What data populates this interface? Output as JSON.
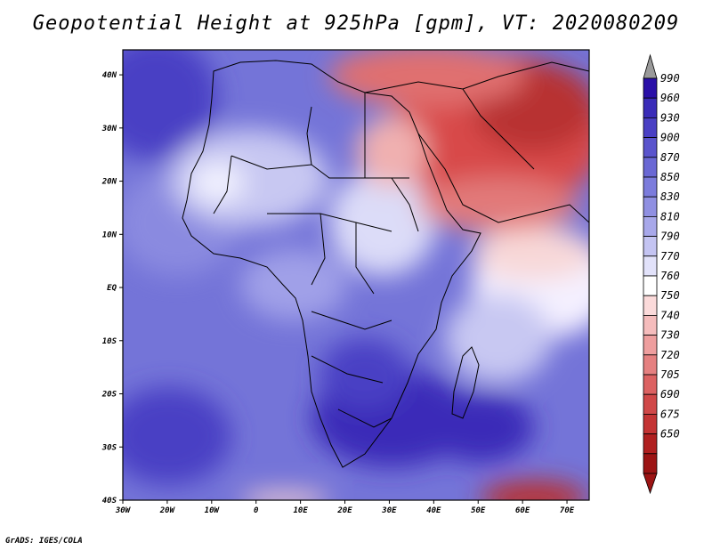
{
  "title": "Geopotential Height at 925hPa [gpm], VT: 2020080209",
  "credit": "GrADS: IGES/COLA",
  "map": {
    "variable": "Geopotential Height",
    "level": "925hPa",
    "units": "gpm",
    "valid_time": "2020080209",
    "region": "Africa and Arabian Peninsula",
    "lon_ticks": [
      "30W",
      "20W",
      "10W",
      "0",
      "10E",
      "20E",
      "30E",
      "40E",
      "50E",
      "60E",
      "70E"
    ],
    "lat_ticks": [
      "40S",
      "30S",
      "20S",
      "10S",
      "EQ",
      "10N",
      "20N",
      "30N",
      "40N"
    ]
  },
  "colorbar": {
    "labels": [
      "990",
      "960",
      "930",
      "900",
      "870",
      "850",
      "830",
      "810",
      "790",
      "770",
      "760",
      "750",
      "740",
      "730",
      "720",
      "705",
      "690",
      "675",
      "650"
    ],
    "colors": [
      "#2a10a8",
      "#3a2cb8",
      "#4a40c4",
      "#5a54cc",
      "#6a68d4",
      "#7c7cdc",
      "#9090e2",
      "#a8a8ea",
      "#c4c4f2",
      "#e2e2fa",
      "#ffffff",
      "#fbdada",
      "#f5bcbc",
      "#ee9e9e",
      "#e58080",
      "#dc6262",
      "#d04848",
      "#c43434",
      "#b02020",
      "#9c1414"
    ],
    "top_arrow_color": "#9a9a9a",
    "bottom_arrow_color": "#9c1414"
  }
}
